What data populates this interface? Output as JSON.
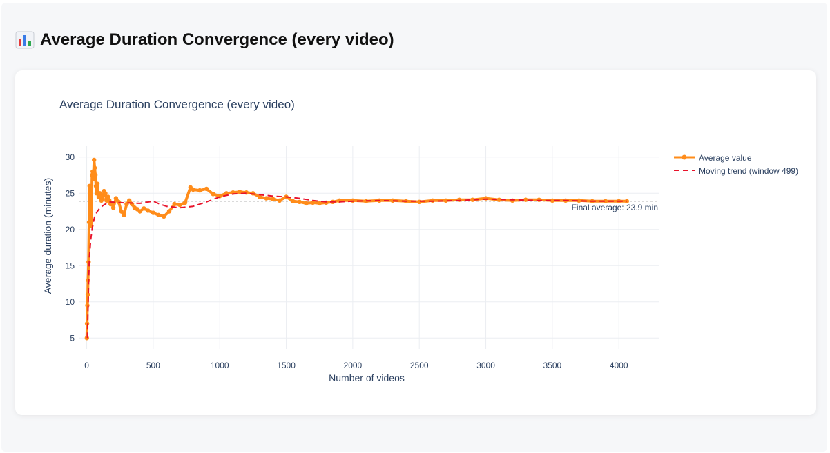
{
  "page": {
    "icon": "bar-chart-emoji-icon",
    "title": "Average Duration Convergence (every video)"
  },
  "colors": {
    "average": "#ff8c1a",
    "trend": "#e8132b",
    "reference": "#6b6b6b",
    "grid": "#ebeef2",
    "text": "#2a3f5f"
  },
  "chart_data": {
    "type": "line",
    "title": "Average Duration Convergence (every video)",
    "xlabel": "Number of videos",
    "ylabel": "Average duration (minutes)",
    "xlim": [
      -60,
      4300
    ],
    "ylim": [
      3.5,
      31.5
    ],
    "xticks": [
      0,
      500,
      1000,
      1500,
      2000,
      2500,
      3000,
      3500,
      4000
    ],
    "yticks": [
      5,
      10,
      15,
      20,
      25,
      30
    ],
    "grid": true,
    "legend_position": "top-right outside",
    "series": [
      {
        "name": "Average value",
        "style": "line+markers",
        "x": [
          1,
          3,
          5,
          8,
          10,
          14,
          18,
          22,
          26,
          30,
          35,
          40,
          45,
          50,
          55,
          60,
          65,
          70,
          75,
          80,
          90,
          100,
          110,
          120,
          130,
          140,
          150,
          160,
          170,
          180,
          190,
          200,
          220,
          240,
          260,
          280,
          300,
          320,
          340,
          360,
          380,
          400,
          430,
          460,
          500,
          540,
          580,
          620,
          660,
          700,
          740,
          780,
          800,
          850,
          900,
          950,
          1000,
          1050,
          1100,
          1150,
          1200,
          1250,
          1300,
          1350,
          1400,
          1450,
          1500,
          1550,
          1600,
          1650,
          1700,
          1750,
          1800,
          1850,
          1900,
          2000,
          2100,
          2200,
          2300,
          2400,
          2500,
          2600,
          2700,
          2800,
          2900,
          3000,
          3100,
          3200,
          3300,
          3400,
          3500,
          3600,
          3700,
          3800,
          3900,
          4000,
          4060
        ],
        "y": [
          5.0,
          7.0,
          9.5,
          11.0,
          13.0,
          15.5,
          21.0,
          26.0,
          21.5,
          23.0,
          20.5,
          27.5,
          28.0,
          27.0,
          29.6,
          28.5,
          27.5,
          26.0,
          25.0,
          26.3,
          24.5,
          25.0,
          24.0,
          24.2,
          25.3,
          25.0,
          24.0,
          24.5,
          24.0,
          23.5,
          23.5,
          23.0,
          24.3,
          23.8,
          22.5,
          22.0,
          23.5,
          24.0,
          23.5,
          23.0,
          22.8,
          22.5,
          22.9,
          22.6,
          22.3,
          22.0,
          21.8,
          22.5,
          23.5,
          23.4,
          23.7,
          25.8,
          25.5,
          25.4,
          25.6,
          24.9,
          24.6,
          25.0,
          25.1,
          25.2,
          25.1,
          25.0,
          24.5,
          24.3,
          24.2,
          24.0,
          24.5,
          23.9,
          23.8,
          23.6,
          23.7,
          23.6,
          23.7,
          23.8,
          24.0,
          24.0,
          23.9,
          24.0,
          24.0,
          23.9,
          23.8,
          24.0,
          24.0,
          24.1,
          24.1,
          24.3,
          24.1,
          24.0,
          24.1,
          24.1,
          24.0,
          24.0,
          24.0,
          23.9,
          23.9,
          23.9,
          23.9
        ]
      },
      {
        "name": "Moving trend (window 499)",
        "style": "dashed line",
        "x": [
          5,
          10,
          15,
          20,
          30,
          40,
          50,
          60,
          80,
          100,
          130,
          170,
          250,
          400,
          500,
          550,
          600,
          700,
          800,
          900,
          1000,
          1100,
          1200,
          1300,
          1400,
          1500,
          1600,
          1700,
          1800,
          1900,
          2000,
          2200,
          2400,
          2600,
          2800,
          3000,
          3200,
          3400,
          3600,
          3800,
          4060
        ],
        "y": [
          5.0,
          9.0,
          13.0,
          16.0,
          18.5,
          20.0,
          21.0,
          21.8,
          22.5,
          23.0,
          23.4,
          23.8,
          23.7,
          23.6,
          23.9,
          23.5,
          23.2,
          23.0,
          23.2,
          23.8,
          24.5,
          24.9,
          25.0,
          24.8,
          24.6,
          24.5,
          24.3,
          24.0,
          23.8,
          23.8,
          23.9,
          24.0,
          23.9,
          23.9,
          24.0,
          24.2,
          24.1,
          24.0,
          24.0,
          23.9,
          23.9
        ]
      }
    ],
    "reference_line": {
      "y": 23.9,
      "label": "Final average: 23.9 min"
    }
  }
}
